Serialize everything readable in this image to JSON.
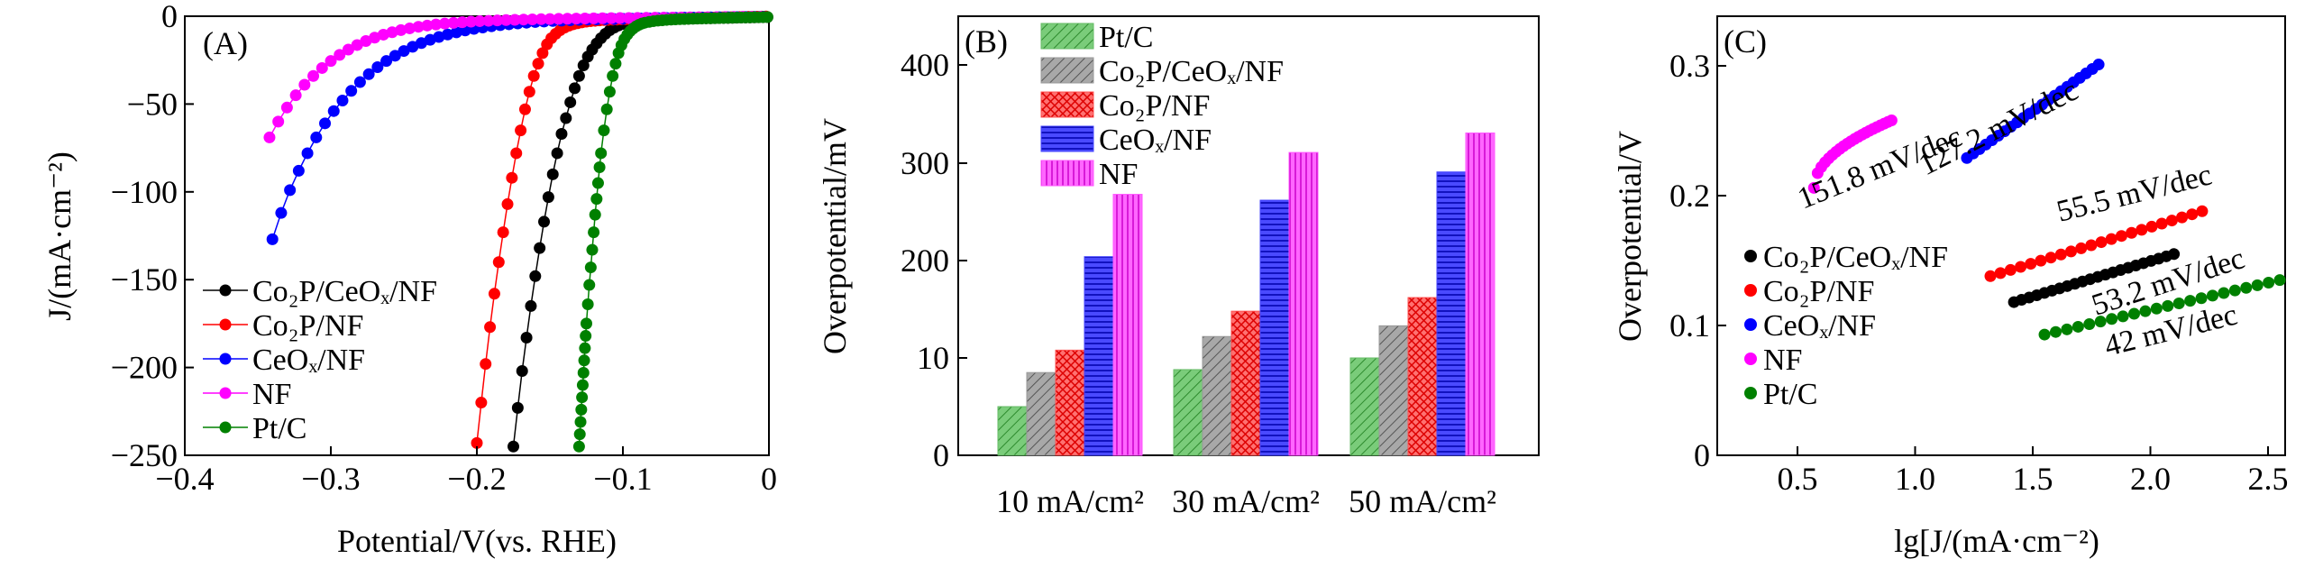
{
  "colors": {
    "Co2P/CeOx/NF": "#000000",
    "Co2P/NF": "#ff0000",
    "CeOx/NF": "#0000ff",
    "NF": "#ff00ff",
    "Pt/C": "#008000",
    "bar_PtC": "#66bb66",
    "bar_Co2PCeOx": "#999999",
    "bar_Co2P": "#ff5555",
    "bar_CeOx": "#4444ff",
    "bar_NF": "#ff55ff"
  },
  "chart_data": [
    {
      "type": "line",
      "panel_label": "(A)",
      "xlabel": "Potential/V(vs. RHE)",
      "ylabel": "J/(mA·cm⁻²)",
      "xlim": [
        -0.4,
        0
      ],
      "ylim": [
        -250,
        0
      ],
      "xticks": [
        -0.4,
        -0.3,
        -0.2,
        -0.1,
        0
      ],
      "xtick_labels": [
        "−0.4",
        "−0.3",
        "−0.2",
        "−0.1",
        "0"
      ],
      "yticks": [
        0,
        -50,
        -100,
        -150,
        -200,
        -250
      ],
      "ytick_labels": [
        "0",
        "−50",
        "−100",
        "−150",
        "−200",
        "−250"
      ],
      "legend_position": "bottom-left",
      "series": [
        {
          "name": "Co2P/CeOx/NF",
          "legend": "Co₂P/CeOₓ/NF",
          "x": [
            -0.175,
            -0.172,
            -0.169,
            -0.166,
            -0.163,
            -0.16,
            -0.157,
            -0.154,
            -0.151,
            -0.148,
            -0.145,
            -0.142,
            -0.139,
            -0.136,
            -0.133,
            -0.13,
            -0.127,
            -0.124,
            -0.121,
            -0.118,
            -0.115,
            -0.112,
            -0.109,
            -0.106,
            -0.103,
            -0.1,
            -0.097,
            -0.094,
            -0.091,
            -0.088,
            -0.085,
            -0.082,
            -0.079,
            -0.076,
            -0.073,
            -0.07,
            -0.067,
            -0.064,
            -0.061,
            -0.058,
            -0.055,
            -0.052,
            -0.049,
            -0.046,
            -0.043,
            -0.04,
            -0.037,
            -0.034,
            -0.031,
            -0.028,
            -0.025,
            -0.022,
            -0.019,
            -0.016,
            -0.013,
            -0.01,
            -0.007,
            -0.004,
            -0.001
          ],
          "y": [
            -245,
            -223,
            -202,
            -183,
            -165,
            -148,
            -132,
            -117,
            -103,
            -90,
            -78,
            -67,
            -58,
            -49,
            -41,
            -34,
            -28,
            -23,
            -19,
            -15.5,
            -12.5,
            -10,
            -8,
            -6.5,
            -5.3,
            -4.4,
            -3.7,
            -3.2,
            -2.8,
            -2.5,
            -2.3,
            -2.1,
            -2.0,
            -1.9,
            -1.8,
            -1.7,
            -1.6,
            -1.55,
            -1.5,
            -1.45,
            -1.4,
            -1.35,
            -1.3,
            -1.25,
            -1.2,
            -1.15,
            -1.1,
            -1.05,
            -1.0,
            -0.95,
            -0.9,
            -0.85,
            -0.8,
            -0.75,
            -0.7,
            -0.65,
            -0.6,
            -0.55,
            -0.5
          ]
        },
        {
          "name": "Co2P/NF",
          "legend": "Co₂P/NF",
          "x": [
            -0.2,
            -0.197,
            -0.194,
            -0.191,
            -0.188,
            -0.185,
            -0.182,
            -0.179,
            -0.176,
            -0.173,
            -0.17,
            -0.167,
            -0.164,
            -0.161,
            -0.158,
            -0.155,
            -0.152,
            -0.149,
            -0.146,
            -0.143,
            -0.14,
            -0.137,
            -0.134,
            -0.131,
            -0.128,
            -0.125,
            -0.122,
            -0.119,
            -0.116,
            -0.113,
            -0.11,
            -0.107,
            -0.104,
            -0.101,
            -0.098,
            -0.095,
            -0.092,
            -0.089,
            -0.086,
            -0.083,
            -0.08,
            -0.077,
            -0.074,
            -0.071,
            -0.068,
            -0.065,
            -0.062,
            -0.059,
            -0.056,
            -0.053,
            -0.05,
            -0.047,
            -0.044,
            -0.041,
            -0.038,
            -0.035,
            -0.032,
            -0.029,
            -0.026,
            -0.023,
            -0.02,
            -0.017,
            -0.014,
            -0.011,
            -0.008,
            -0.005,
            -0.002
          ],
          "y": [
            -243,
            -220,
            -198,
            -177,
            -158,
            -140,
            -123,
            -107,
            -92,
            -78,
            -65,
            -53,
            -43,
            -34,
            -27,
            -21,
            -16,
            -12.5,
            -10,
            -8,
            -6.5,
            -5.4,
            -4.6,
            -4.0,
            -3.5,
            -3.1,
            -2.8,
            -2.6,
            -2.4,
            -2.2,
            -2.1,
            -2.0,
            -1.9,
            -1.8,
            -1.75,
            -1.7,
            -1.65,
            -1.6,
            -1.55,
            -1.5,
            -1.45,
            -1.4,
            -1.35,
            -1.3,
            -1.25,
            -1.2,
            -1.15,
            -1.1,
            -1.05,
            -1.0,
            -0.95,
            -0.9,
            -0.85,
            -0.8,
            -0.75,
            -0.7,
            -0.65,
            -0.6,
            -0.55,
            -0.5,
            -0.45,
            -0.4,
            -0.35,
            -0.3,
            -0.25,
            -0.2,
            -0.15
          ]
        },
        {
          "name": "CeOx/NF",
          "legend": "CeOₓ/NF",
          "x": [
            -0.34,
            -0.334,
            -0.328,
            -0.322,
            -0.316,
            -0.31,
            -0.304,
            -0.298,
            -0.292,
            -0.286,
            -0.28,
            -0.274,
            -0.268,
            -0.262,
            -0.256,
            -0.25,
            -0.244,
            -0.238,
            -0.232,
            -0.226,
            -0.22,
            -0.214,
            -0.208,
            -0.202,
            -0.196,
            -0.19,
            -0.184,
            -0.178,
            -0.172,
            -0.166,
            -0.16,
            -0.154,
            -0.148,
            -0.142,
            -0.136,
            -0.13,
            -0.124,
            -0.118,
            -0.112,
            -0.106,
            -0.1,
            -0.094,
            -0.088,
            -0.082,
            -0.076,
            -0.07,
            -0.064,
            -0.058,
            -0.052,
            -0.046,
            -0.04,
            -0.034,
            -0.028,
            -0.022,
            -0.016,
            -0.01,
            -0.004
          ],
          "y": [
            -127,
            -112,
            -99,
            -88,
            -78,
            -69,
            -61,
            -54,
            -48,
            -42.5,
            -37.5,
            -33,
            -29,
            -25.5,
            -22.5,
            -19.8,
            -17.4,
            -15.3,
            -13.4,
            -11.8,
            -10.4,
            -9.2,
            -8.1,
            -7.2,
            -6.4,
            -5.7,
            -5.1,
            -4.6,
            -4.1,
            -3.7,
            -3.3,
            -3.0,
            -2.7,
            -2.5,
            -2.3,
            -2.1,
            -1.9,
            -1.8,
            -1.7,
            -1.6,
            -1.5,
            -1.4,
            -1.3,
            -1.2,
            -1.1,
            -1.0,
            -0.9,
            -0.8,
            -0.75,
            -0.7,
            -0.65,
            -0.6,
            -0.55,
            -0.5,
            -0.45,
            -0.4,
            -0.35
          ]
        },
        {
          "name": "NF",
          "legend": "NF",
          "x": [
            -0.342,
            -0.336,
            -0.33,
            -0.324,
            -0.318,
            -0.312,
            -0.306,
            -0.3,
            -0.294,
            -0.288,
            -0.282,
            -0.276,
            -0.27,
            -0.264,
            -0.258,
            -0.252,
            -0.246,
            -0.24,
            -0.234,
            -0.228,
            -0.222,
            -0.216,
            -0.21,
            -0.204,
            -0.198,
            -0.192,
            -0.186,
            -0.18,
            -0.174,
            -0.168,
            -0.162,
            -0.156,
            -0.15,
            -0.144,
            -0.138,
            -0.132,
            -0.126,
            -0.12,
            -0.114,
            -0.108,
            -0.102,
            -0.096,
            -0.09,
            -0.084,
            -0.078,
            -0.072,
            -0.066,
            -0.06,
            -0.054,
            -0.048,
            -0.042,
            -0.036,
            -0.03,
            -0.024,
            -0.018,
            -0.012,
            -0.006
          ],
          "y": [
            -69,
            -60,
            -52,
            -45,
            -39,
            -34,
            -29.5,
            -25.5,
            -22,
            -19,
            -16.4,
            -14.1,
            -12.2,
            -10.5,
            -9.1,
            -7.9,
            -6.9,
            -6.0,
            -5.3,
            -4.7,
            -4.2,
            -3.8,
            -3.4,
            -3.1,
            -2.8,
            -2.6,
            -2.4,
            -2.2,
            -2.05,
            -1.9,
            -1.8,
            -1.7,
            -1.6,
            -1.5,
            -1.42,
            -1.35,
            -1.28,
            -1.21,
            -1.15,
            -1.1,
            -1.05,
            -1.0,
            -0.95,
            -0.9,
            -0.85,
            -0.8,
            -0.75,
            -0.7,
            -0.65,
            -0.6,
            -0.55,
            -0.5,
            -0.45,
            -0.4,
            -0.35,
            -0.3,
            -0.25
          ]
        },
        {
          "name": "Pt/C",
          "legend": "Pt/C",
          "x": [
            -0.13,
            -0.1295,
            -0.129,
            -0.1285,
            -0.128,
            -0.1275,
            -0.127,
            -0.1265,
            -0.126,
            -0.1255,
            -0.125,
            -0.124,
            -0.123,
            -0.122,
            -0.121,
            -0.12,
            -0.119,
            -0.118,
            -0.117,
            -0.116,
            -0.115,
            -0.113,
            -0.111,
            -0.109,
            -0.107,
            -0.105,
            -0.103,
            -0.101,
            -0.099,
            -0.097,
            -0.095,
            -0.093,
            -0.091,
            -0.089,
            -0.087,
            -0.085,
            -0.082,
            -0.079,
            -0.076,
            -0.073,
            -0.07,
            -0.067,
            -0.064,
            -0.061,
            -0.058,
            -0.055,
            -0.052,
            -0.049,
            -0.046,
            -0.043,
            -0.04,
            -0.037,
            -0.034,
            -0.031,
            -0.028,
            -0.025,
            -0.022,
            -0.019,
            -0.016,
            -0.013,
            -0.01,
            -0.007,
            -0.004,
            -0.001
          ],
          "y": [
            -245,
            -238,
            -231,
            -224,
            -217,
            -210,
            -203,
            -196,
            -189,
            -182,
            -175,
            -164,
            -153,
            -143,
            -133,
            -123,
            -113,
            -104,
            -95,
            -86,
            -78,
            -65,
            -53,
            -43,
            -34,
            -27,
            -21,
            -16.5,
            -13,
            -10.5,
            -8.5,
            -7.0,
            -5.8,
            -4.9,
            -4.2,
            -3.7,
            -3.2,
            -2.8,
            -2.5,
            -2.3,
            -2.1,
            -1.95,
            -1.8,
            -1.7,
            -1.6,
            -1.5,
            -1.42,
            -1.34,
            -1.27,
            -1.2,
            -1.14,
            -1.08,
            -1.02,
            -0.96,
            -0.9,
            -0.85,
            -0.8,
            -0.75,
            -0.7,
            -0.65,
            -0.6,
            -0.55,
            -0.5,
            -0.45
          ]
        }
      ]
    },
    {
      "type": "bar",
      "panel_label": "(B)",
      "xlabel": "",
      "ylabel": "Overpotential/mV",
      "categories": [
        "10 mA/cm²",
        "30 mA/cm²",
        "50  mA/cm²"
      ],
      "yticks": [
        0,
        10,
        200,
        300,
        400
      ],
      "ytick_labels": [
        "0",
        "10",
        "200",
        "300",
        "400"
      ],
      "ylim_pixel_mapped": [
        0,
        440
      ],
      "legend_position": "top-left",
      "series": [
        {
          "name": "Pt/C",
          "legend": "Pt/C",
          "values": [
            50,
            88,
            100
          ]
        },
        {
          "name": "Co2P/CeOx/NF",
          "legend": "Co₂P/CeOₓ/NF",
          "values": [
            85,
            122,
            133
          ]
        },
        {
          "name": "Co2P/NF",
          "legend": "Co₂P/NF",
          "values": [
            108,
            148,
            162
          ]
        },
        {
          "name": "CeOx/NF",
          "legend": "CeOₓ/NF",
          "values": [
            204,
            262,
            291
          ]
        },
        {
          "name": "NF",
          "legend": "NF",
          "values": [
            268,
            311,
            331
          ]
        }
      ]
    },
    {
      "type": "scatter",
      "panel_label": "(C)",
      "xlabel": "lg[J/(mA·cm⁻²)",
      "ylabel": "Overpotential/V",
      "xlim": [
        0,
        2.65
      ],
      "ylim": [
        0,
        0.34
      ],
      "xticks": [
        0.5,
        1.0,
        1.5,
        2.0,
        2.5
      ],
      "xtick_labels": [
        "0.5",
        "1.0",
        "1.5",
        "2.0",
        "2.5"
      ],
      "yticks": [
        0,
        0.1,
        0.2,
        0.3
      ],
      "ytick_labels": [
        "0",
        "0.1",
        "0.2",
        "0.3"
      ],
      "legend_position": "left-middle",
      "annotations": [
        "151.8 mV/dec",
        "127.2 mV/dec",
        "55.5 mV/dec",
        "53.2 mV/dec",
        "42 mV/dec"
      ],
      "series": [
        {
          "name": "Co2P/CeOx/NF",
          "legend": "Co₂P/CeOₓ/NF",
          "x_range": [
            1.42,
            2.1
          ],
          "y_range": [
            0.118,
            0.155
          ],
          "slope": "53.2 mV/dec"
        },
        {
          "name": "Co2P/NF",
          "legend": "Co₂P/NF",
          "x_range": [
            1.32,
            2.22
          ],
          "y_range": [
            0.138,
            0.188
          ],
          "slope": "55.5 mV/dec"
        },
        {
          "name": "CeOx/NF",
          "legend": "CeOₓ/NF",
          "x_range": [
            1.22,
            1.78
          ],
          "y_range": [
            0.229,
            0.301
          ],
          "slope": "127.2 mV/dec"
        },
        {
          "name": "NF",
          "legend": "NF",
          "x_range": [
            0.57,
            0.9
          ],
          "y_range": [
            0.206,
            0.258
          ],
          "slope": "151.8 mV/dec"
        },
        {
          "name": "Pt/C",
          "legend": "Pt/C",
          "x_range": [
            1.55,
            2.55
          ],
          "y_range": [
            0.093,
            0.135
          ],
          "slope": "42 mV/dec"
        }
      ]
    }
  ]
}
